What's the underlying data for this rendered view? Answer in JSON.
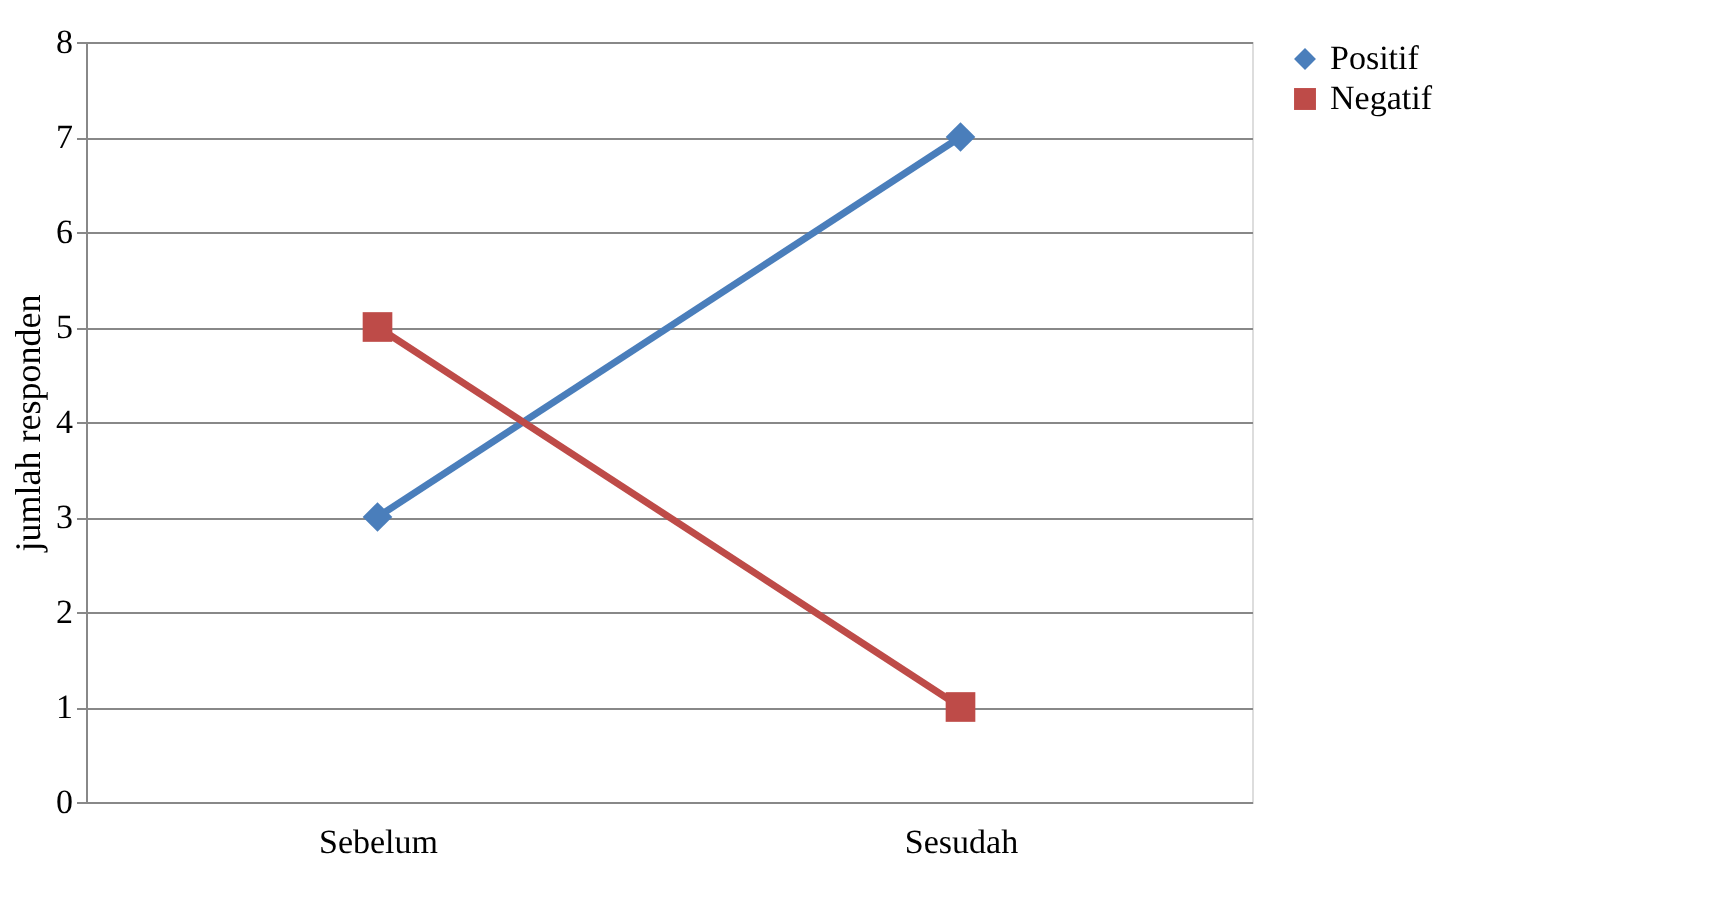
{
  "chart_data": {
    "type": "line",
    "ylabel": "jumlah responden",
    "categories": [
      "Sebelum",
      "Sesudah"
    ],
    "series": [
      {
        "name": "Positif",
        "color": "#4a7ebb",
        "marker": "diamond",
        "values": [
          3,
          7
        ]
      },
      {
        "name": "Negatif",
        "color": "#be4b48",
        "marker": "square",
        "values": [
          5,
          1
        ]
      }
    ],
    "ylim": [
      0,
      8
    ],
    "yticks": [
      0,
      1,
      2,
      3,
      4,
      5,
      6,
      7,
      8
    ],
    "grid": "y",
    "legend": "right"
  }
}
